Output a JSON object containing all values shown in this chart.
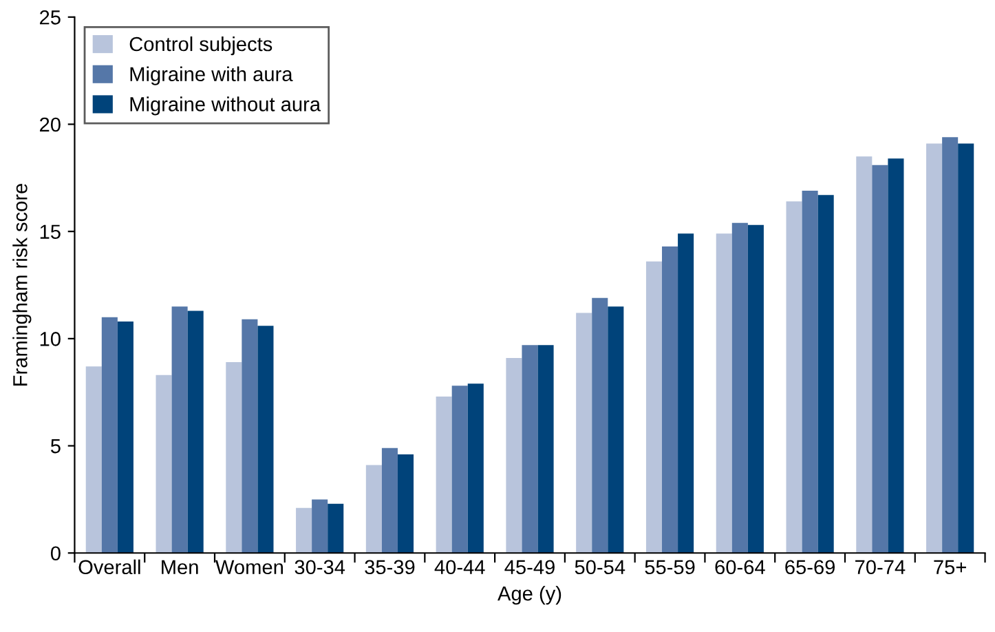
{
  "chart_data": {
    "type": "bar",
    "xlabel": "Age (y)",
    "ylabel": "Framingham risk score",
    "categories": [
      "Overall",
      "Men",
      "Women",
      "30-34",
      "35-39",
      "40-44",
      "45-49",
      "50-54",
      "55-59",
      "60-64",
      "65-69",
      "70-74",
      "75+"
    ],
    "series": [
      {
        "name": "Control subjects",
        "color": "#b8c4dc",
        "values": [
          8.7,
          8.3,
          8.9,
          2.1,
          4.1,
          7.3,
          9.1,
          11.2,
          13.6,
          14.9,
          16.4,
          18.5,
          19.1
        ]
      },
      {
        "name": "Migraine with aura",
        "color": "#5577a8",
        "values": [
          11.0,
          11.5,
          10.9,
          2.5,
          4.9,
          7.8,
          9.7,
          11.9,
          14.3,
          15.4,
          16.9,
          18.1,
          19.4
        ]
      },
      {
        "name": "Migraine without aura",
        "color": "#00437a",
        "values": [
          10.8,
          11.3,
          10.6,
          2.3,
          4.6,
          7.9,
          9.7,
          11.5,
          14.9,
          15.3,
          16.7,
          18.4,
          19.1
        ]
      }
    ],
    "ylim": [
      0,
      25
    ],
    "yticks": [
      0,
      5,
      10,
      15,
      20,
      25
    ],
    "grid": false,
    "legend": "top left"
  }
}
